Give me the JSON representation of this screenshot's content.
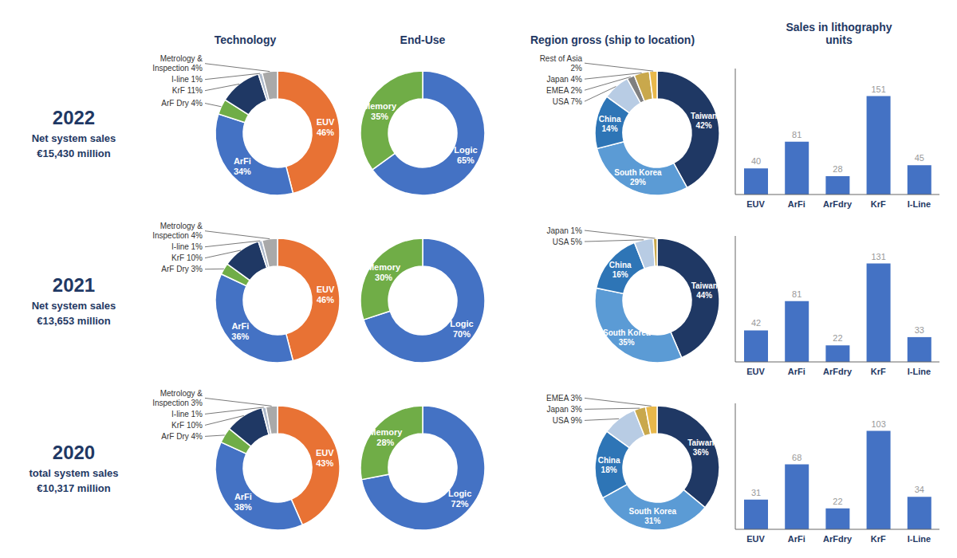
{
  "chart_data": [
    {
      "type": "pie",
      "title": "Technology",
      "annotations": [
        "2022",
        "Net system sales",
        "€15,430 million"
      ],
      "values": [
        46,
        34,
        4,
        11,
        1,
        4
      ],
      "value_labels": [
        "EUV\n46%",
        "ArFi\n34%",
        "ArF Dry 4%",
        "KrF 11%",
        "I-line 1%",
        "Metrology &\nInspection 4%"
      ],
      "colors": [
        "#E87234",
        "#4472C4",
        "#70AD47",
        "#1F3864",
        "#ADB9CA",
        "#A9A9A9"
      ]
    },
    {
      "type": "pie",
      "title": "End-Use",
      "values": [
        65,
        35
      ],
      "value_labels": [
        "Logic\n65%",
        "Memory\n35%"
      ],
      "colors": [
        "#4472C4",
        "#70AD47"
      ]
    },
    {
      "type": "pie",
      "title": "Region gross (ship to location)",
      "values": [
        42,
        29,
        14,
        7,
        2,
        4,
        2
      ],
      "value_labels": [
        "Taiwan\n42%",
        "South Korea\n29%",
        "China\n14%",
        "USA 7%",
        "EMEA 2%",
        "Japan 4%",
        "Rest of Asia\n2%"
      ],
      "colors": [
        "#1F3864",
        "#5B9BD5",
        "#2E75B6",
        "#B8CCE4",
        "#808080",
        "#C9A84C",
        "#E8B84B"
      ]
    },
    {
      "type": "bar",
      "title": "Sales in lithography\nunits",
      "categories": [
        "EUV",
        "ArFi",
        "ArFdry",
        "KrF",
        "I-Line"
      ],
      "values": [
        40,
        81,
        28,
        151,
        45
      ],
      "color": "#4472C4",
      "ylim": [
        0,
        193.28
      ],
      "tick_labels": "x",
      "data_labels": true,
      "grid": false
    },
    {
      "type": "pie",
      "annotations": [
        "2021",
        "Net system sales",
        "€13,653 million"
      ],
      "values": [
        46,
        36,
        3,
        10,
        1,
        4
      ],
      "value_labels": [
        "EUV\n46%",
        "ArFi\n36%",
        "ArF Dry 3%",
        "KrF 10%",
        "I-line 1%",
        "Metrology &\nInspection 4%"
      ],
      "colors": [
        "#E87234",
        "#4472C4",
        "#70AD47",
        "#1F3864",
        "#ADB9CA",
        "#A9A9A9"
      ]
    },
    {
      "type": "pie",
      "values": [
        70,
        30
      ],
      "value_labels": [
        "Logic\n70%",
        "Memory\n30%"
      ],
      "colors": [
        "#4472C4",
        "#70AD47"
      ]
    },
    {
      "type": "pie",
      "values": [
        44,
        35,
        16,
        5,
        1
      ],
      "value_labels": [
        "Taiwan\n44%",
        "South Korea\n35%",
        "China\n16%",
        "USA 5%",
        "Japan 1%"
      ],
      "colors": [
        "#1F3864",
        "#5B9BD5",
        "#2E75B6",
        "#B8CCE4",
        "#C9A84C"
      ]
    },
    {
      "type": "bar",
      "categories": [
        "EUV",
        "ArFi",
        "ArFdry",
        "KrF",
        "I-Line"
      ],
      "values": [
        42,
        81,
        22,
        131,
        33
      ],
      "color": "#4472C4",
      "ylim": [
        0,
        167.68
      ],
      "tick_labels": "x",
      "data_labels": true,
      "grid": false
    },
    {
      "type": "pie",
      "annotations": [
        "2020",
        "total system sales",
        "€10,317 million"
      ],
      "values": [
        43,
        38,
        4,
        10,
        1,
        3
      ],
      "value_labels": [
        "EUV\n43%",
        "ArFi\n38%",
        "ArF Dry 4%",
        "KrF 10%",
        "I-line 1%",
        "Metrology &\nInspection 3%"
      ],
      "colors": [
        "#E87234",
        "#4472C4",
        "#70AD47",
        "#1F3864",
        "#ADB9CA",
        "#A9A9A9"
      ]
    },
    {
      "type": "pie",
      "values": [
        72,
        28
      ],
      "value_labels": [
        "Logic\n72%",
        "Memory\n28%"
      ],
      "colors": [
        "#4472C4",
        "#70AD47"
      ]
    },
    {
      "type": "pie",
      "values": [
        36,
        31,
        18,
        9,
        3,
        3
      ],
      "value_labels": [
        "Taiwan\n36%",
        "South Korea\n31%",
        "China\n18%",
        "USA 9%",
        "Japan 3%",
        "EMEA 3%"
      ],
      "colors": [
        "#1F3864",
        "#5B9BD5",
        "#2E75B6",
        "#B8CCE4",
        "#C9A84C",
        "#E8B84B"
      ]
    },
    {
      "type": "bar",
      "categories": [
        "EUV",
        "ArFi",
        "ArFdry",
        "KrF",
        "I-Line"
      ],
      "values": [
        31,
        68,
        22,
        103,
        34
      ],
      "color": "#4472C4",
      "ylim": [
        0,
        131.84
      ],
      "tick_labels": "x",
      "data_labels": true,
      "grid": false
    }
  ]
}
